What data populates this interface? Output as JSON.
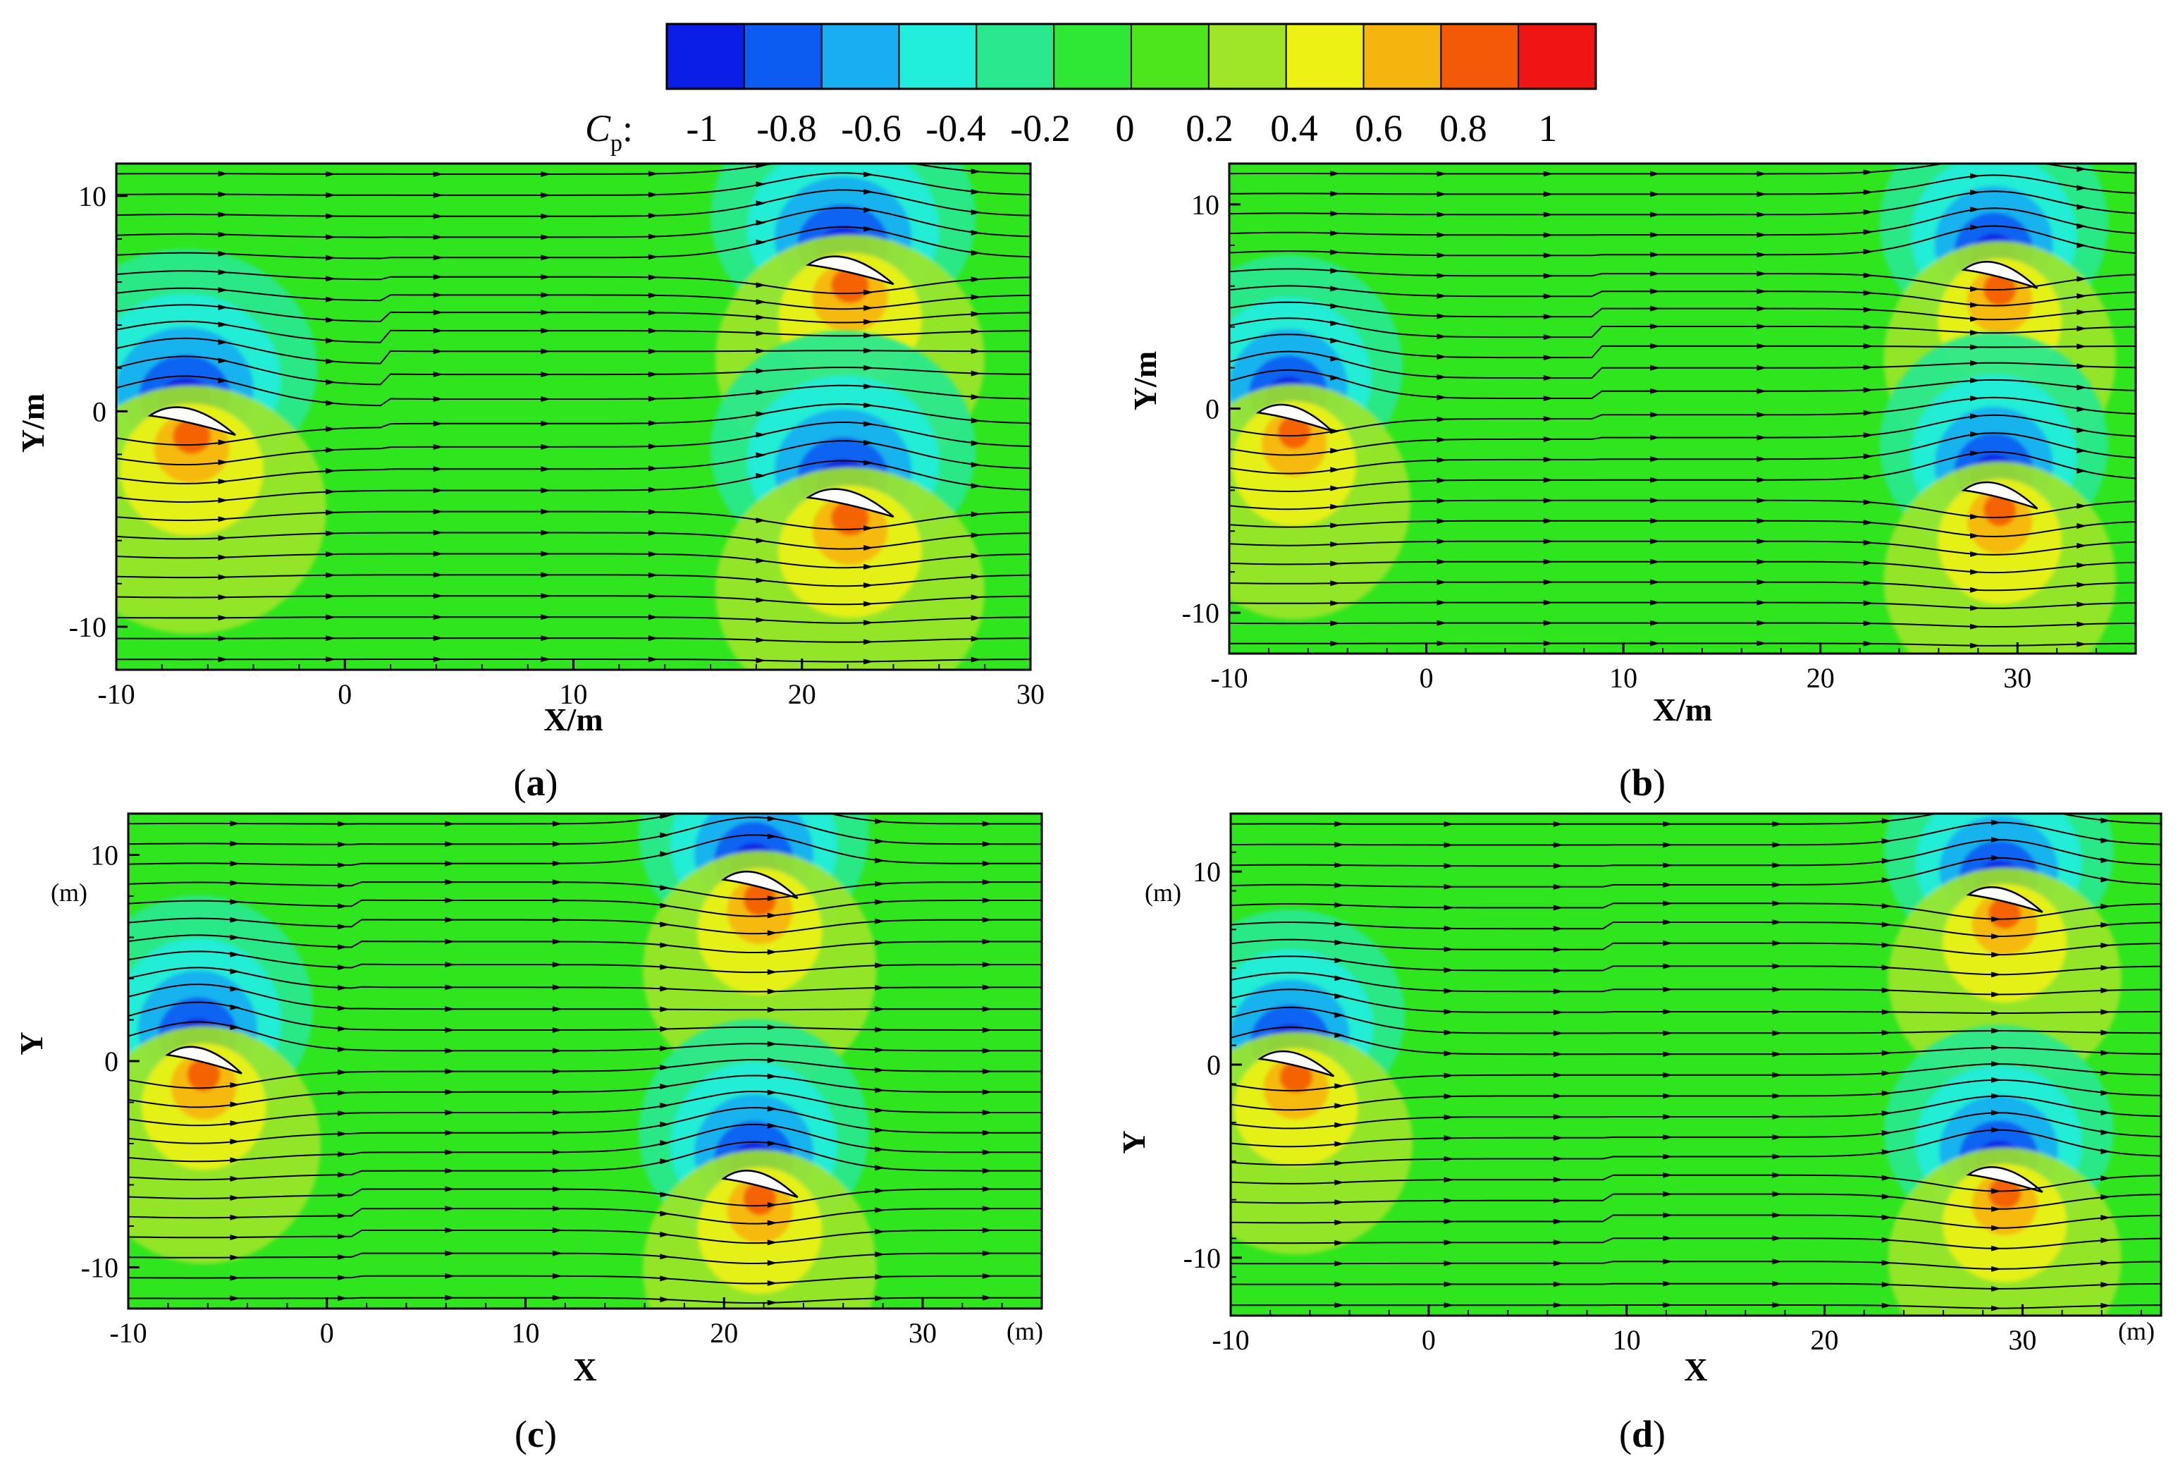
{
  "colorbar": {
    "label_main": "C",
    "label_sub": "p",
    "label_suffix": ":",
    "ticks": [
      "-1",
      "-0.8",
      "-0.6",
      "-0.4",
      "-0.2",
      "0",
      "0.2",
      "0.4",
      "0.6",
      "0.8",
      "1"
    ],
    "colors": [
      "#0a1ee6",
      "#0d5cf2",
      "#18aef0",
      "#22eedc",
      "#29e88e",
      "#2ee833",
      "#4de61c",
      "#9fe628",
      "#eef214",
      "#f6b40e",
      "#f45a06",
      "#f01414"
    ]
  },
  "background_color": "#2fe51e",
  "chart_data": [
    {
      "type": "heatmap",
      "panel": "(a)",
      "caption_text": "a",
      "xlabel": "X/m",
      "ylabel": "Y/m",
      "xunit": "",
      "yunit": "",
      "xlim": [
        -10,
        30
      ],
      "ylim": [
        -12,
        11.5
      ],
      "xticks": [
        -10,
        0,
        10,
        20,
        30
      ],
      "yticks": [
        -10,
        0,
        10
      ],
      "airfoils": [
        [
          -7,
          0
        ],
        [
          21.8,
          7
        ],
        [
          21.8,
          -3.8
        ]
      ],
      "wake_rows": [
        [
          21.8,
          3.5
        ],
        [
          21.8,
          1.5
        ]
      ]
    },
    {
      "type": "heatmap",
      "panel": "(b)",
      "caption_text": "b",
      "xlabel": "X/m",
      "ylabel": "Y/m",
      "xunit": "",
      "yunit": "",
      "xlim": [
        -10,
        36
      ],
      "ylim": [
        -12,
        12
      ],
      "xticks": [
        -10,
        0,
        10,
        20,
        30
      ],
      "yticks": [
        -10,
        0,
        10
      ],
      "airfoils": [
        [
          -7,
          0
        ],
        [
          28.8,
          7
        ],
        [
          28.8,
          -3.8
        ]
      ],
      "wake_rows": [
        [
          28.8,
          3.8
        ],
        [
          28.8,
          1.5
        ]
      ]
    },
    {
      "type": "heatmap",
      "panel": "(c)",
      "caption_text": "c",
      "xlabel": "X",
      "ylabel": "Y",
      "xunit": "(m)",
      "yunit": "(m)",
      "xlim": [
        -10,
        36
      ],
      "ylim": [
        -12,
        12
      ],
      "xticks": [
        -10,
        0,
        10,
        20,
        30
      ],
      "yticks": [
        -10,
        0,
        10
      ],
      "airfoils": [
        [
          -6.5,
          0.5
        ],
        [
          21.5,
          9
        ],
        [
          21.5,
          -5.5
        ]
      ],
      "wake_rows": [
        [
          21.5,
          6.5
        ],
        [
          21.5,
          -7.5
        ]
      ]
    },
    {
      "type": "heatmap",
      "panel": "(d)",
      "caption_text": "d",
      "xlabel": "X",
      "ylabel": "Y",
      "xunit": "(m)",
      "yunit": "(m)",
      "xlim": [
        -10,
        37
      ],
      "ylim": [
        -13,
        13
      ],
      "xticks": [
        -10,
        0,
        10,
        20,
        30
      ],
      "yticks": [
        -10,
        0,
        10
      ],
      "airfoils": [
        [
          -7,
          0.5
        ],
        [
          28.8,
          9
        ],
        [
          28.8,
          -5.5
        ]
      ],
      "wake_rows": [
        [
          28.8,
          6.5
        ],
        [
          28.8,
          -7.5
        ]
      ]
    }
  ]
}
